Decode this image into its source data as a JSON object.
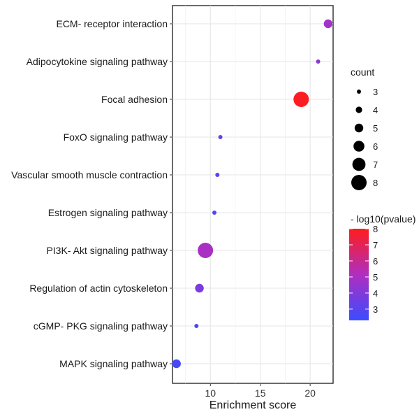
{
  "chart_data": {
    "type": "scatter",
    "subtype": "bubble",
    "title": "",
    "xlabel": "Enrichment score",
    "ylabel": "",
    "xlim": [
      6.2,
      22.3
    ],
    "xticks": [
      10,
      15,
      20
    ],
    "grid": true,
    "categories": [
      "ECM- receptor interaction",
      "Adipocytokine signaling pathway",
      "Focal adhesion",
      "FoxO signaling pathway",
      "Vascular smooth muscle contraction",
      "Estrogen signaling pathway",
      "PI3K- Akt signaling pathway",
      "Regulation of actin cytoskeleton",
      "cGMP- PKG signaling pathway",
      "MAPK signaling pathway"
    ],
    "points": [
      {
        "pathway": "ECM- receptor interaction",
        "enrichment": 21.8,
        "count": 5,
        "neglog10p": 4.8
      },
      {
        "pathway": "Adipocytokine signaling pathway",
        "enrichment": 20.8,
        "count": 3,
        "neglog10p": 4.2
      },
      {
        "pathway": "Focal adhesion",
        "enrichment": 19.1,
        "count": 8,
        "neglog10p": 7.9
      },
      {
        "pathway": "FoxO signaling pathway",
        "enrichment": 11.0,
        "count": 3,
        "neglog10p": 3.4
      },
      {
        "pathway": "Vascular smooth muscle contraction",
        "enrichment": 10.7,
        "count": 3,
        "neglog10p": 2.9
      },
      {
        "pathway": "Estrogen signaling pathway",
        "enrichment": 10.4,
        "count": 3,
        "neglog10p": 2.9
      },
      {
        "pathway": "PI3K- Akt signaling pathway",
        "enrichment": 9.5,
        "count": 8,
        "neglog10p": 5.0
      },
      {
        "pathway": "Regulation of actin cytoskeleton",
        "enrichment": 8.9,
        "count": 5,
        "neglog10p": 3.8
      },
      {
        "pathway": "cGMP- PKG signaling pathway",
        "enrichment": 8.6,
        "count": 3,
        "neglog10p": 2.7
      },
      {
        "pathway": "MAPK signaling pathway",
        "enrichment": 6.6,
        "count": 5,
        "neglog10p": 2.6
      }
    ],
    "legend_size": {
      "title": "count",
      "values": [
        3,
        4,
        5,
        6,
        7,
        8
      ],
      "labels": [
        "3",
        "4",
        "5",
        "6",
        "7",
        "8"
      ],
      "position": "right"
    },
    "legend_color": {
      "title": "- log10(pvalue)",
      "min": 2.3,
      "max": 8,
      "ticks": [
        "8",
        "7",
        "6",
        "5",
        "4",
        "3"
      ],
      "tick_values": [
        8,
        7,
        6,
        5,
        4,
        3
      ],
      "color_low": "#3b4cff",
      "color_mid": "#b02ec0",
      "color_high": "#ff1c1c",
      "position": "right"
    }
  }
}
